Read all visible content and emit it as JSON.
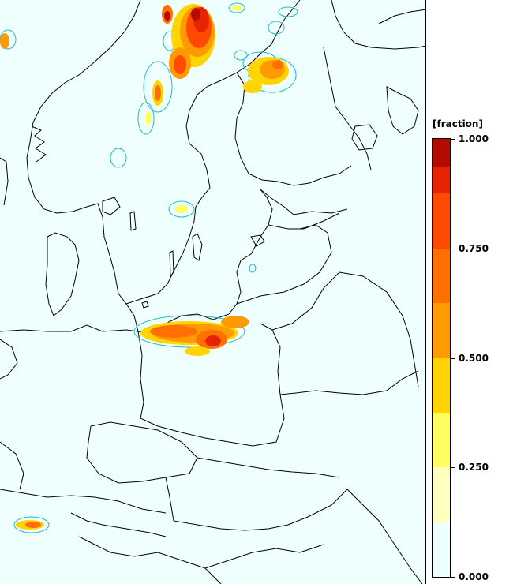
{
  "map": {
    "background_color": "#eefffe",
    "border_color": "#000000",
    "contour_color": "#23b8c8"
  },
  "legend": {
    "unit": "[fraction]",
    "tick_labels": [
      "1.000",
      "0.750",
      "0.500",
      "0.250",
      "0.000"
    ],
    "tick_values": [
      1.0,
      0.75,
      0.5,
      0.25,
      0.0
    ],
    "classes": [
      {
        "from": 0.0,
        "to": 0.125,
        "color": "#eefffe"
      },
      {
        "from": 0.125,
        "to": 0.25,
        "color": "#ffffc0"
      },
      {
        "from": 0.25,
        "to": 0.375,
        "color": "#ffff60"
      },
      {
        "from": 0.375,
        "to": 0.5,
        "color": "#ffd400"
      },
      {
        "from": 0.5,
        "to": 0.625,
        "color": "#ff9b00"
      },
      {
        "from": 0.625,
        "to": 0.75,
        "color": "#ff7000"
      },
      {
        "from": 0.75,
        "to": 0.875,
        "color": "#ff4a00"
      },
      {
        "from": 0.875,
        "to": 0.9375,
        "color": "#e52500"
      },
      {
        "from": 0.9375,
        "to": 1.0,
        "color": "#b40a00"
      }
    ]
  }
}
